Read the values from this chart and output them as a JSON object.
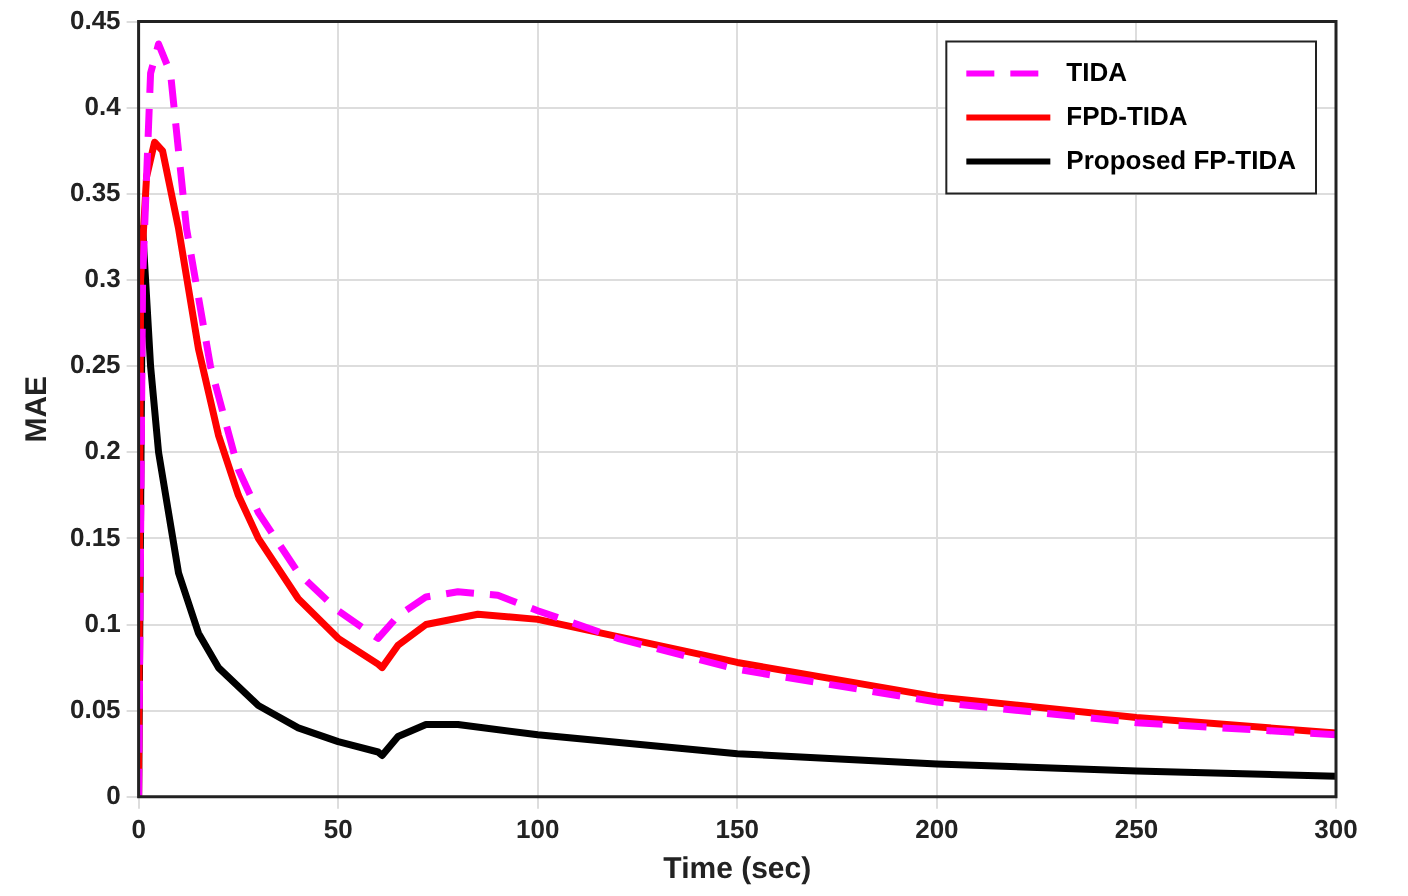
{
  "chart_data": {
    "type": "line",
    "xlabel": "Time (sec)",
    "ylabel": "MAE",
    "xlim": [
      0,
      300
    ],
    "xticks": [
      0,
      50,
      100,
      150,
      200,
      250,
      300
    ],
    "ylim": [
      0,
      0.45
    ],
    "yticks": [
      0,
      0.05,
      0.1,
      0.15,
      0.2,
      0.25,
      0.3,
      0.35,
      0.4,
      0.45
    ],
    "grid": true,
    "legend": "top right",
    "marker": "none",
    "series": [
      {
        "name": "TIDA",
        "color": "#ff00ff",
        "line_style": "dashed",
        "x": [
          0,
          1,
          3,
          5,
          8,
          12,
          18,
          25,
          30,
          40,
          50,
          58,
          60,
          65,
          72,
          80,
          90,
          100,
          120,
          150,
          200,
          250,
          300
        ],
        "values": [
          0,
          0.3,
          0.42,
          0.437,
          0.42,
          0.33,
          0.25,
          0.19,
          0.165,
          0.13,
          0.108,
          0.095,
          0.092,
          0.105,
          0.116,
          0.119,
          0.117,
          0.108,
          0.092,
          0.074,
          0.055,
          0.043,
          0.036
        ]
      },
      {
        "name": "FPD-TIDA",
        "color": "#ff0000",
        "line_style": "solid",
        "x": [
          0,
          0.5,
          2,
          4,
          6,
          10,
          15,
          20,
          25,
          30,
          40,
          50,
          60,
          61,
          65,
          72,
          85,
          100,
          150,
          200,
          250,
          300
        ],
        "values": [
          0,
          0.3,
          0.36,
          0.38,
          0.375,
          0.33,
          0.26,
          0.21,
          0.175,
          0.15,
          0.115,
          0.092,
          0.077,
          0.075,
          0.088,
          0.1,
          0.106,
          0.103,
          0.078,
          0.058,
          0.046,
          0.037
        ]
      },
      {
        "name": "Proposed FP-TIDA",
        "color": "#000000",
        "line_style": "solid",
        "x": [
          0,
          1,
          3,
          5,
          10,
          15,
          20,
          30,
          40,
          50,
          60,
          61,
          65,
          72,
          80,
          100,
          150,
          200,
          250,
          300
        ],
        "values": [
          0,
          0.33,
          0.25,
          0.2,
          0.13,
          0.095,
          0.075,
          0.053,
          0.04,
          0.032,
          0.026,
          0.024,
          0.035,
          0.042,
          0.042,
          0.036,
          0.025,
          0.019,
          0.015,
          0.012
        ]
      }
    ]
  }
}
